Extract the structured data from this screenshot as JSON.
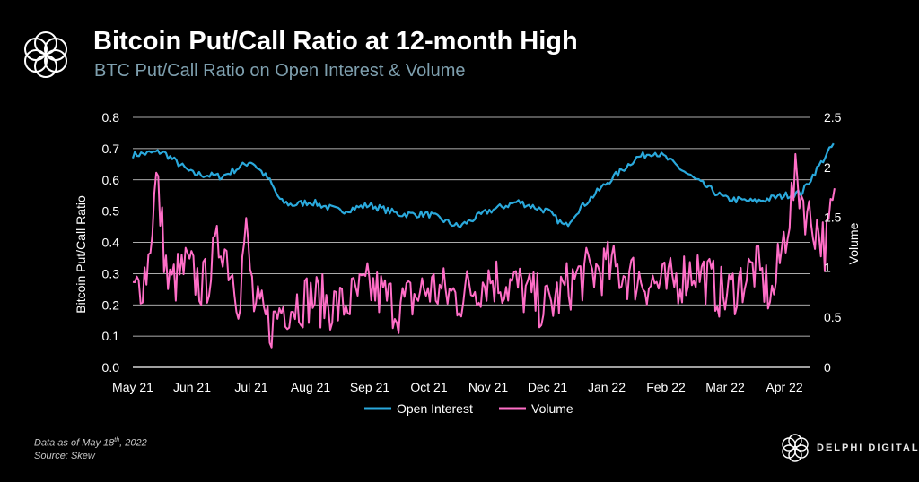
{
  "header": {
    "title": "Bitcoin Put/Call Ratio at 12-month High",
    "subtitle": "BTC Put/Call Ratio on Open Interest & Volume"
  },
  "footnote": {
    "line1_pre": "Data as of May 18",
    "line1_sup": "th",
    "line1_post": ", 2022",
    "line2": "Source: Skew"
  },
  "brand": {
    "name": "DELPHI DIGITAL"
  },
  "colors": {
    "open_interest": "#2aa9dc",
    "volume": "#ff6ec7",
    "grid": "#ffffff",
    "subtitle": "#7e9fae"
  },
  "chart_data": {
    "type": "line",
    "ylabel": "Bitcoin Put/Call Ratio",
    "y2label": "Volume",
    "ylim": [
      0,
      0.8
    ],
    "y2lim": [
      0,
      2.5
    ],
    "yticks": [
      "0.0",
      "0.1",
      "0.2",
      "0.3",
      "0.4",
      "0.5",
      "0.6",
      "0.7",
      "0.8"
    ],
    "y2ticks": [
      "0",
      "0.5",
      "1",
      "1.5",
      "2",
      "2.5"
    ],
    "xticks": [
      "May 21",
      "Jun 21",
      "Jul 21",
      "Aug 21",
      "Sep 21",
      "Oct 21",
      "Nov 21",
      "Dec 21",
      "Jan 22",
      "Feb 22",
      "Mar 22",
      "Apr 22"
    ],
    "grid": "horizontal",
    "legend": "bottom-center",
    "series": [
      {
        "name": "Open Interest",
        "axis": "left",
        "x_month_index": [
          0,
          0.5,
          1,
          1.5,
          2,
          2.3,
          2.5,
          2.7,
          3,
          3.5,
          4,
          4.5,
          5,
          5.5,
          6,
          6.5,
          7,
          7.3,
          7.5,
          8,
          8.5,
          8.8,
          9,
          9.5,
          10,
          10.5,
          11,
          11.3,
          11.5,
          11.85
        ],
        "values": [
          0.68,
          0.69,
          0.62,
          0.61,
          0.66,
          0.6,
          0.53,
          0.52,
          0.53,
          0.5,
          0.52,
          0.49,
          0.49,
          0.45,
          0.5,
          0.53,
          0.5,
          0.45,
          0.5,
          0.59,
          0.67,
          0.69,
          0.67,
          0.6,
          0.54,
          0.53,
          0.55,
          0.56,
          0.62,
          0.72
        ]
      },
      {
        "name": "Volume",
        "axis": "right",
        "x_month_index": [
          0,
          0.25,
          0.4,
          0.6,
          0.9,
          1.2,
          1.5,
          1.8,
          1.9,
          2.05,
          2.2,
          2.35,
          2.5,
          3,
          3.5,
          4,
          4.5,
          5,
          5.5,
          6,
          6.5,
          7,
          7.5,
          8,
          8.5,
          9,
          9.5,
          10,
          10.5,
          10.8,
          11,
          11.2,
          11.4,
          11.55,
          11.7,
          11.85
        ],
        "values": [
          0.7,
          1.0,
          1.9,
          0.8,
          1.0,
          0.8,
          1.3,
          0.7,
          1.4,
          0.6,
          0.5,
          0.4,
          0.6,
          0.7,
          0.6,
          0.8,
          0.6,
          0.8,
          0.7,
          0.9,
          0.8,
          0.6,
          0.9,
          1.0,
          0.9,
          0.8,
          1.0,
          0.7,
          1.0,
          0.7,
          1.3,
          1.9,
          1.5,
          1.4,
          1.2,
          1.7
        ]
      }
    ]
  }
}
